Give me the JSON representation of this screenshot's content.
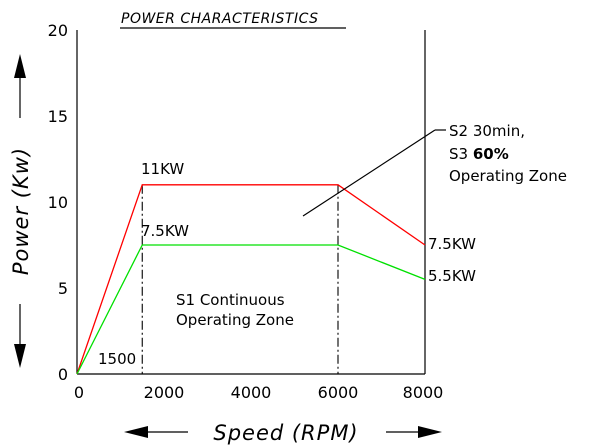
{
  "chart_data": {
    "type": "line",
    "title": "POWER CHARACTERISTICS",
    "xlabel": "Speed  (RPM)",
    "ylabel": "Power  (Kw)",
    "xlim": [
      0,
      8000
    ],
    "ylim": [
      0,
      20
    ],
    "x_ticks": [
      "0",
      "2000",
      "4000",
      "6000",
      "8000"
    ],
    "y_ticks": [
      "0",
      "5",
      "10",
      "15",
      "20"
    ],
    "grid": false,
    "series": [
      {
        "color": "#ff0000",
        "x": [
          0,
          1500,
          6000,
          8000
        ],
        "y": [
          0,
          11,
          11,
          7.5
        ]
      },
      {
        "color": "#00e000",
        "x": [
          0,
          1500,
          6000,
          8000
        ],
        "y": [
          0,
          7.5,
          7.5,
          5.5
        ]
      }
    ],
    "annotations": {
      "base_speed": "1500",
      "red_peak": "11KW",
      "green_peak": "7.5KW",
      "red_end": "7.5KW",
      "green_end": "5.5KW",
      "s1_line1": "S1  Continuous",
      "s1_line2": "Operating  Zone",
      "s2_line1": "S2  30min,",
      "s3_prefix": "S3 ",
      "s3_value": "60%",
      "s2_line3": "Operating  Zone"
    },
    "colors": {
      "red": "#ff0000",
      "green": "#00e000",
      "axis": "#000000"
    }
  }
}
